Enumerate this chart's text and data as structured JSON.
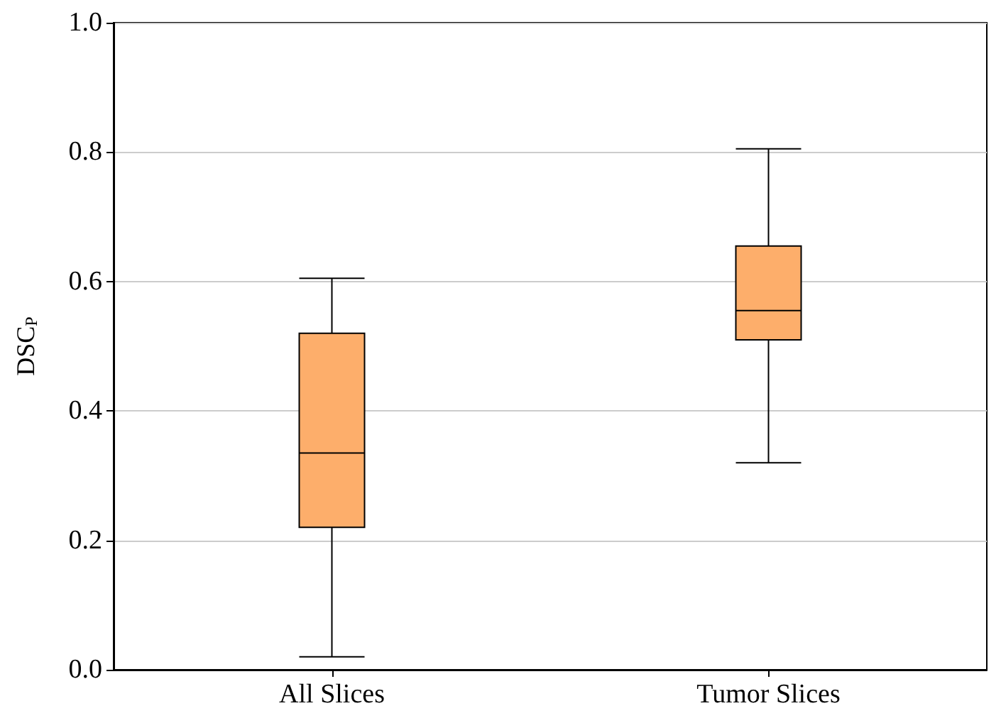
{
  "chart_data": {
    "type": "box",
    "categories": [
      "All Slices",
      "Tumor Slices"
    ],
    "boxes": [
      {
        "low": 0.02,
        "q1": 0.22,
        "median": 0.335,
        "q3": 0.52,
        "high": 0.605
      },
      {
        "low": 0.32,
        "q1": 0.51,
        "median": 0.555,
        "q3": 0.655,
        "high": 0.805
      }
    ],
    "color": "#fdae6b",
    "ylabel": "DSC$_{P}$",
    "ylim": [
      0,
      1
    ],
    "yticks": [
      {
        "value": 0,
        "label": "0.0"
      },
      {
        "value": 0.2,
        "label": "0.2"
      },
      {
        "value": 0.4,
        "label": "0.4"
      },
      {
        "value": 0.6,
        "label": "0.6"
      },
      {
        "value": 0.8,
        "label": "0.8"
      },
      {
        "value": 1,
        "label": "1.0"
      }
    ],
    "grid": "y"
  }
}
